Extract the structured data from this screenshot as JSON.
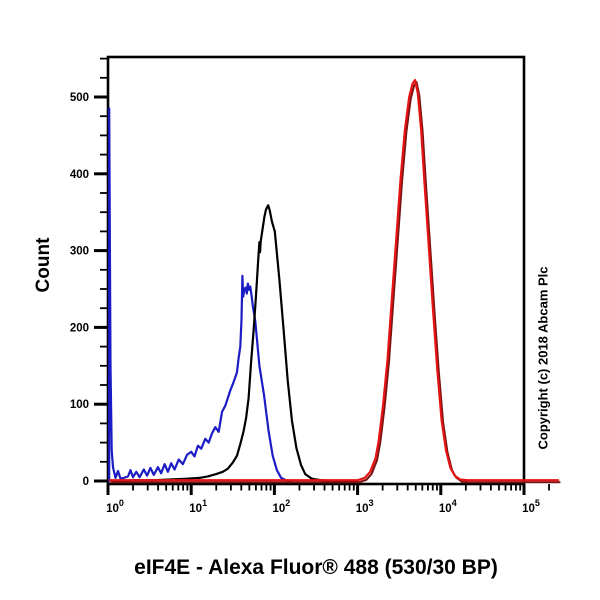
{
  "figure": {
    "background": "#ffffff"
  },
  "chart_data": {
    "type": "line",
    "subtype": "flow-cytometry-histogram-overlay",
    "title": "",
    "xlabel": "eIF4E - Alexa Fluor® 488 (530/30 BP)",
    "ylabel": "Count",
    "copyright": "Copyright (c) 2018 Abcam Plc",
    "x_scale": "log10",
    "x_tick_label_base": "10",
    "x_tick_exponents": [
      0,
      1,
      2,
      3,
      4,
      5
    ],
    "xlim_log10": [
      0,
      5.42
    ],
    "ylim": [
      0,
      552
    ],
    "y_ticks": [
      0,
      100,
      200,
      300,
      400,
      500
    ],
    "y_minor_step": 25,
    "grid": false,
    "legend": null,
    "axis_color": "#000000",
    "series": [
      {
        "name": "negative-control-blue",
        "color": "#1c1cc4",
        "stroke_width": 2.2,
        "points": [
          [
            0.015,
            0
          ],
          [
            0.015,
            485
          ],
          [
            0.03,
            150
          ],
          [
            0.045,
            40
          ],
          [
            0.06,
            18
          ],
          [
            0.09,
            4
          ],
          [
            0.12,
            13
          ],
          [
            0.15,
            3
          ],
          [
            0.19,
            4
          ],
          [
            0.24,
            6
          ],
          [
            0.27,
            14
          ],
          [
            0.3,
            5
          ],
          [
            0.34,
            12
          ],
          [
            0.38,
            5
          ],
          [
            0.43,
            15
          ],
          [
            0.47,
            7
          ],
          [
            0.51,
            17
          ],
          [
            0.55,
            8
          ],
          [
            0.6,
            18
          ],
          [
            0.64,
            10
          ],
          [
            0.68,
            22
          ],
          [
            0.72,
            12
          ],
          [
            0.76,
            23
          ],
          [
            0.8,
            15
          ],
          [
            0.85,
            28
          ],
          [
            0.9,
            22
          ],
          [
            0.95,
            34
          ],
          [
            1.0,
            38
          ],
          [
            1.04,
            32
          ],
          [
            1.08,
            46
          ],
          [
            1.12,
            42
          ],
          [
            1.17,
            55
          ],
          [
            1.21,
            50
          ],
          [
            1.25,
            62
          ],
          [
            1.29,
            70
          ],
          [
            1.33,
            64
          ],
          [
            1.37,
            90
          ],
          [
            1.41,
            98
          ],
          [
            1.44,
            108
          ],
          [
            1.47,
            118
          ],
          [
            1.5,
            126
          ],
          [
            1.53,
            135
          ],
          [
            1.55,
            142
          ],
          [
            1.57,
            160
          ],
          [
            1.59,
            175
          ],
          [
            1.605,
            210
          ],
          [
            1.615,
            267
          ],
          [
            1.625,
            240
          ],
          [
            1.64,
            250
          ],
          [
            1.655,
            252
          ],
          [
            1.668,
            244
          ],
          [
            1.682,
            257
          ],
          [
            1.695,
            249
          ],
          [
            1.71,
            253
          ],
          [
            1.725,
            242
          ],
          [
            1.74,
            228
          ],
          [
            1.77,
            208
          ],
          [
            1.82,
            150
          ],
          [
            1.875,
            112
          ],
          [
            1.93,
            65
          ],
          [
            1.98,
            33
          ],
          [
            2.03,
            14
          ],
          [
            2.08,
            4
          ],
          [
            2.14,
            1
          ],
          [
            2.2,
            0
          ]
        ]
      },
      {
        "name": "isotype-control-black",
        "color": "#000000",
        "stroke_width": 2.2,
        "points": [
          [
            0.05,
            0
          ],
          [
            0.3,
            1
          ],
          [
            0.55,
            1
          ],
          [
            0.75,
            2
          ],
          [
            0.95,
            3
          ],
          [
            1.1,
            4
          ],
          [
            1.2,
            6
          ],
          [
            1.3,
            9
          ],
          [
            1.38,
            12
          ],
          [
            1.44,
            16
          ],
          [
            1.5,
            24
          ],
          [
            1.55,
            33
          ],
          [
            1.59,
            48
          ],
          [
            1.63,
            65
          ],
          [
            1.66,
            82
          ],
          [
            1.69,
            108
          ],
          [
            1.72,
            155
          ],
          [
            1.75,
            196
          ],
          [
            1.77,
            228
          ],
          [
            1.79,
            260
          ],
          [
            1.805,
            288
          ],
          [
            1.82,
            311
          ],
          [
            1.828,
            298
          ],
          [
            1.835,
            312
          ],
          [
            1.86,
            330
          ],
          [
            1.88,
            344
          ],
          [
            1.9,
            354
          ],
          [
            1.925,
            359
          ],
          [
            1.945,
            352
          ],
          [
            1.97,
            338
          ],
          [
            2.005,
            325
          ],
          [
            2.06,
            262
          ],
          [
            2.11,
            197
          ],
          [
            2.16,
            131
          ],
          [
            2.21,
            79
          ],
          [
            2.265,
            43
          ],
          [
            2.32,
            21
          ],
          [
            2.37,
            9
          ],
          [
            2.45,
            3
          ],
          [
            2.56,
            1
          ],
          [
            2.72,
            0
          ],
          [
            3.0,
            0
          ]
        ]
      },
      {
        "name": "eif4e-stained-red",
        "color": "#e51414",
        "shadow_color": "#7a1212",
        "stroke_width": 2.2,
        "points": [
          [
            0.02,
            1
          ],
          [
            1.0,
            1
          ],
          [
            2.0,
            1
          ],
          [
            2.8,
            1
          ],
          [
            3.0,
            1
          ],
          [
            3.086,
            4
          ],
          [
            3.151,
            12
          ],
          [
            3.216,
            30
          ],
          [
            3.255,
            53
          ],
          [
            3.307,
            99
          ],
          [
            3.359,
            158
          ],
          [
            3.411,
            236
          ],
          [
            3.464,
            314
          ],
          [
            3.516,
            392
          ],
          [
            3.568,
            457
          ],
          [
            3.62,
            500
          ],
          [
            3.66,
            517
          ],
          [
            3.69,
            522
          ],
          [
            3.724,
            505
          ],
          [
            3.763,
            458
          ],
          [
            3.802,
            392
          ],
          [
            3.854,
            307
          ],
          [
            3.906,
            223
          ],
          [
            3.958,
            145
          ],
          [
            4.01,
            79
          ],
          [
            4.062,
            40
          ],
          [
            4.115,
            17
          ],
          [
            4.167,
            7
          ],
          [
            4.232,
            2
          ],
          [
            4.32,
            1
          ],
          [
            4.8,
            1
          ],
          [
            5.41,
            1
          ]
        ]
      }
    ]
  }
}
